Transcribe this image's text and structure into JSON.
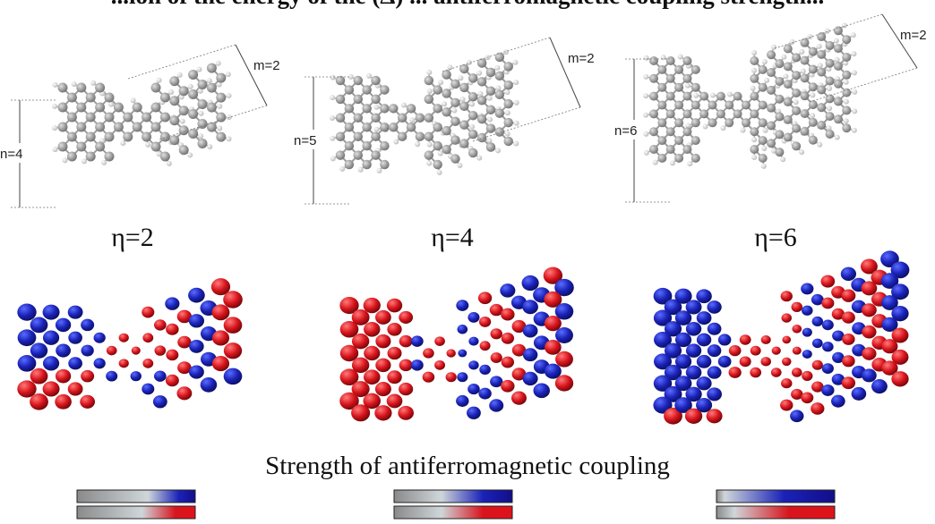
{
  "figure": {
    "top_title_partial": "...ion of the energy of the (Δ) ... antiferromagnetic coupling strength...",
    "strength_title": "Strength of antiferromagnetic coupling",
    "colors": {
      "spin_up": "#1a22b8",
      "spin_down": "#d8141c",
      "carbon": "#8e8e8e",
      "hydrogen": "#e4e4e4",
      "gray_start": "#8a8a8a"
    },
    "panels": [
      {
        "eta_label": "η=2",
        "n_label": "n=4",
        "m_label": "m=2",
        "blue_fraction": 0.25,
        "red_fraction": 0.3
      },
      {
        "eta_label": "η=4",
        "n_label": "n=5",
        "m_label": "m=2",
        "blue_fraction": 0.45,
        "red_fraction": 0.45
      },
      {
        "eta_label": "η=6",
        "n_label": "n=6",
        "m_label": "m=2",
        "blue_fraction": 0.78,
        "red_fraction": 0.7
      }
    ]
  }
}
